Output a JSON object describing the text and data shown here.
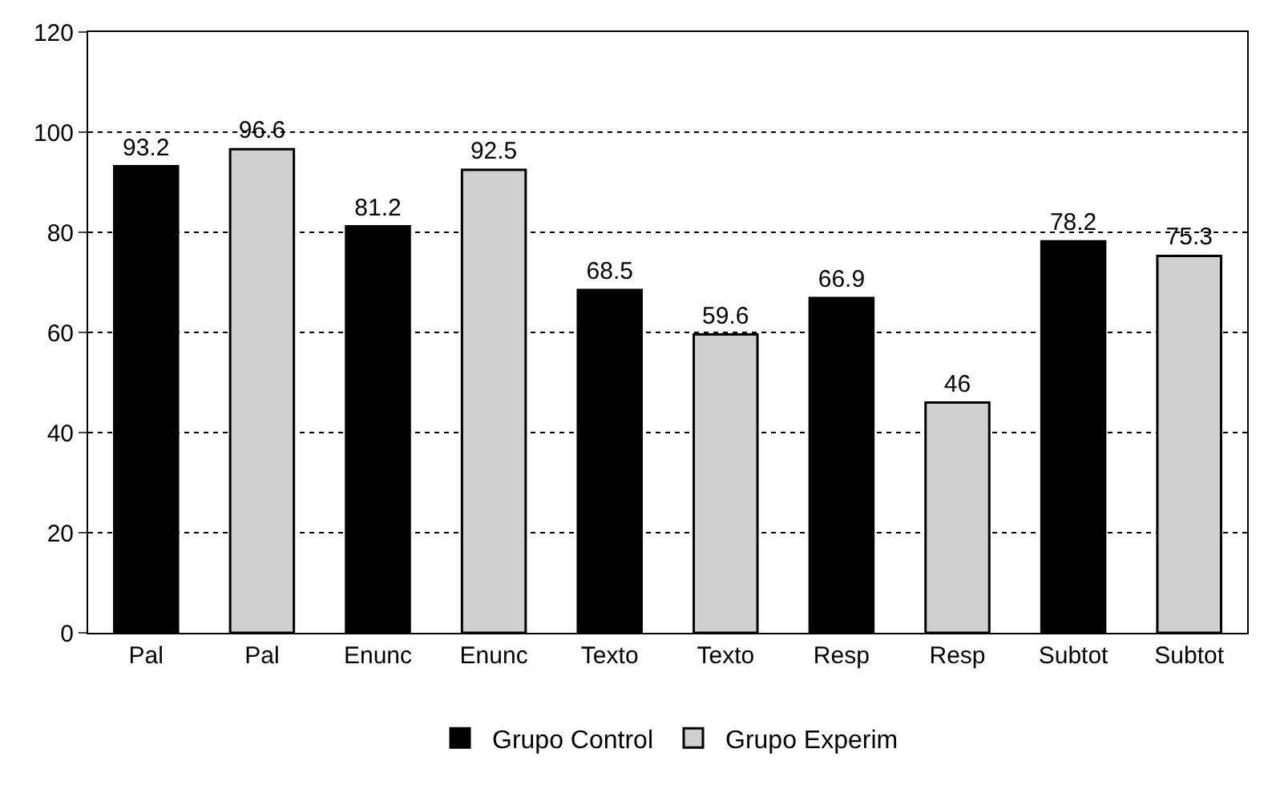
{
  "chart_data": {
    "type": "bar",
    "categories": [
      "Pal",
      "Pal",
      "Enunc",
      "Enunc",
      "Texto",
      "Texto",
      "Resp",
      "Resp",
      "Subtot",
      "Subtot"
    ],
    "series": [
      {
        "name": "Grupo Control",
        "color": "#000000",
        "values": [
          93.2,
          null,
          81.2,
          null,
          68.5,
          null,
          66.9,
          null,
          78.2,
          null
        ]
      },
      {
        "name": "Grupo Experim",
        "color": "#d0d0d0",
        "values": [
          null,
          96.6,
          null,
          92.5,
          null,
          59.6,
          null,
          46,
          null,
          75.3
        ]
      }
    ],
    "ylim": [
      0,
      120
    ],
    "yticks": [
      0,
      20,
      40,
      60,
      80,
      100,
      120
    ],
    "grid": "y",
    "legend": "bottom",
    "data_labels": true
  }
}
